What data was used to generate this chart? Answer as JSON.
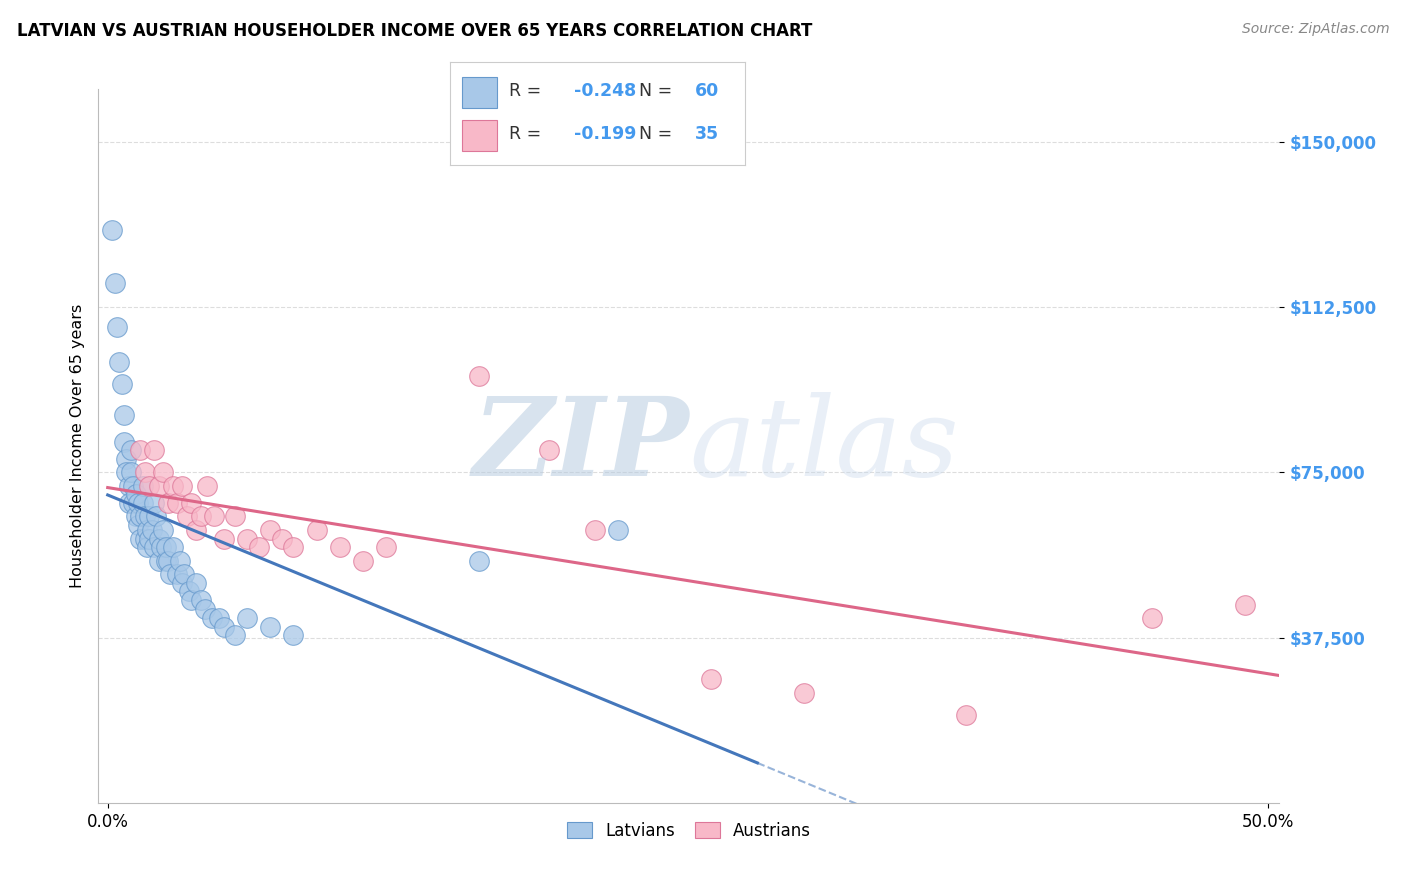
{
  "title": "LATVIAN VS AUSTRIAN HOUSEHOLDER INCOME OVER 65 YEARS CORRELATION CHART",
  "source": "Source: ZipAtlas.com",
  "ylabel": "Householder Income Over 65 years",
  "ytick_labels": [
    "$37,500",
    "$75,000",
    "$112,500",
    "$150,000"
  ],
  "ytick_vals": [
    37500,
    75000,
    112500,
    150000
  ],
  "ylim": [
    0,
    162000
  ],
  "xlim": [
    -0.004,
    0.505
  ],
  "latvian_R": -0.248,
  "latvian_N": 60,
  "austrian_R": -0.199,
  "austrian_N": 35,
  "latvian_color": "#A8C8E8",
  "austrian_color": "#F8B8C8",
  "latvian_edge_color": "#6699CC",
  "austrian_edge_color": "#DD7799",
  "latvian_line_color": "#4477BB",
  "austrian_line_color": "#DD6688",
  "latvian_scatter_x": [
    0.002,
    0.003,
    0.004,
    0.005,
    0.006,
    0.007,
    0.007,
    0.008,
    0.008,
    0.009,
    0.009,
    0.01,
    0.01,
    0.011,
    0.011,
    0.012,
    0.012,
    0.013,
    0.013,
    0.014,
    0.014,
    0.015,
    0.015,
    0.016,
    0.016,
    0.017,
    0.017,
    0.018,
    0.018,
    0.019,
    0.02,
    0.02,
    0.021,
    0.022,
    0.022,
    0.023,
    0.024,
    0.025,
    0.025,
    0.026,
    0.027,
    0.028,
    0.03,
    0.031,
    0.032,
    0.033,
    0.035,
    0.036,
    0.038,
    0.04,
    0.042,
    0.045,
    0.048,
    0.05,
    0.055,
    0.06,
    0.07,
    0.08,
    0.16,
    0.22
  ],
  "latvian_scatter_y": [
    130000,
    118000,
    108000,
    100000,
    95000,
    88000,
    82000,
    78000,
    75000,
    72000,
    68000,
    80000,
    75000,
    72000,
    68000,
    70000,
    65000,
    68000,
    63000,
    65000,
    60000,
    72000,
    68000,
    65000,
    60000,
    62000,
    58000,
    65000,
    60000,
    62000,
    68000,
    58000,
    65000,
    60000,
    55000,
    58000,
    62000,
    55000,
    58000,
    55000,
    52000,
    58000,
    52000,
    55000,
    50000,
    52000,
    48000,
    46000,
    50000,
    46000,
    44000,
    42000,
    42000,
    40000,
    38000,
    42000,
    40000,
    38000,
    55000,
    62000
  ],
  "austrian_scatter_x": [
    0.014,
    0.016,
    0.018,
    0.02,
    0.022,
    0.024,
    0.026,
    0.028,
    0.03,
    0.032,
    0.034,
    0.036,
    0.038,
    0.04,
    0.043,
    0.046,
    0.05,
    0.055,
    0.06,
    0.065,
    0.07,
    0.075,
    0.08,
    0.09,
    0.1,
    0.11,
    0.12,
    0.16,
    0.19,
    0.21,
    0.26,
    0.3,
    0.37,
    0.45,
    0.49
  ],
  "austrian_scatter_y": [
    80000,
    75000,
    72000,
    80000,
    72000,
    75000,
    68000,
    72000,
    68000,
    72000,
    65000,
    68000,
    62000,
    65000,
    72000,
    65000,
    60000,
    65000,
    60000,
    58000,
    62000,
    60000,
    58000,
    62000,
    58000,
    55000,
    58000,
    97000,
    80000,
    62000,
    28000,
    25000,
    20000,
    42000,
    45000
  ],
  "watermark_zip": "ZIP",
  "watermark_atlas": "atlas",
  "background_color": "#FFFFFF",
  "grid_color": "#DDDDDD",
  "title_fontsize": 12,
  "source_fontsize": 10,
  "tick_color": "#4499EE"
}
